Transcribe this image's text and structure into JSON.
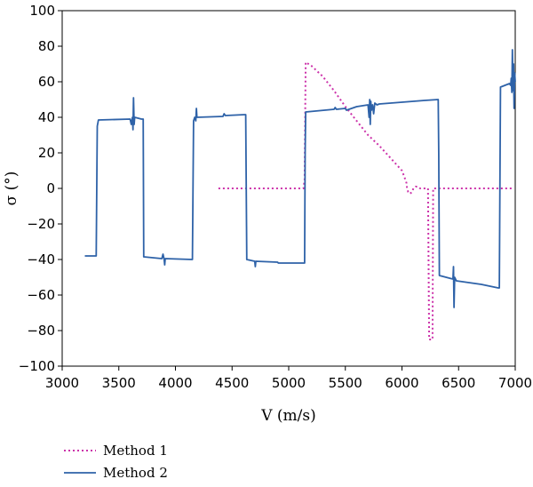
{
  "chart_data": {
    "type": "line",
    "xlabel": "V (m/s)",
    "ylabel": "σ (°)",
    "xlim": [
      3000,
      7000
    ],
    "ylim": [
      -100,
      100
    ],
    "xticks": [
      3000,
      3500,
      4000,
      4500,
      5000,
      5500,
      6000,
      6500,
      7000
    ],
    "yticks": [
      -100,
      -80,
      -60,
      -40,
      -20,
      0,
      20,
      40,
      60,
      80,
      100
    ],
    "grid": false,
    "legend_position": "bottom-left-below",
    "series": [
      {
        "name": "Method 1",
        "style": "dotted",
        "color": "#cc33aa",
        "points": [
          [
            4380,
            0
          ],
          [
            5130,
            0
          ],
          [
            5140,
            5
          ],
          [
            5150,
            71
          ],
          [
            5200,
            69
          ],
          [
            5300,
            63
          ],
          [
            5400,
            55
          ],
          [
            5500,
            46
          ],
          [
            5600,
            38
          ],
          [
            5700,
            30
          ],
          [
            5800,
            24
          ],
          [
            5900,
            17
          ],
          [
            6000,
            10
          ],
          [
            6030,
            5
          ],
          [
            6040,
            3
          ],
          [
            6045,
            0
          ],
          [
            6055,
            -2
          ],
          [
            6070,
            -3
          ],
          [
            6090,
            -2
          ],
          [
            6100,
            0
          ],
          [
            6120,
            1
          ],
          [
            6140,
            1
          ],
          [
            6160,
            0
          ],
          [
            6210,
            0
          ],
          [
            6230,
            0
          ],
          [
            6240,
            -85
          ],
          [
            6270,
            -85
          ],
          [
            6275,
            0
          ],
          [
            6980,
            0
          ]
        ]
      },
      {
        "name": "Method 2",
        "style": "solid",
        "color": "#2e62a8",
        "points": [
          [
            3200,
            -38
          ],
          [
            3300,
            -38
          ],
          [
            3310,
            35
          ],
          [
            3320,
            38.5
          ],
          [
            3600,
            39
          ],
          [
            3610,
            36
          ],
          [
            3620,
            40
          ],
          [
            3625,
            33
          ],
          [
            3630,
            51
          ],
          [
            3635,
            36
          ],
          [
            3640,
            40
          ],
          [
            3700,
            39
          ],
          [
            3715,
            39
          ],
          [
            3720,
            -38.5
          ],
          [
            3880,
            -39.5
          ],
          [
            3890,
            -37
          ],
          [
            3900,
            -40
          ],
          [
            3905,
            -43
          ],
          [
            3910,
            -39.5
          ],
          [
            4150,
            -40
          ],
          [
            4160,
            38
          ],
          [
            4170,
            40
          ],
          [
            4180,
            38
          ],
          [
            4185,
            45
          ],
          [
            4190,
            40
          ],
          [
            4420,
            40.5
          ],
          [
            4430,
            42
          ],
          [
            4440,
            41
          ],
          [
            4610,
            41.5
          ],
          [
            4620,
            41.5
          ],
          [
            4630,
            -40
          ],
          [
            4700,
            -41
          ],
          [
            4705,
            -44
          ],
          [
            4710,
            -41
          ],
          [
            4900,
            -41.5
          ],
          [
            4910,
            -42
          ],
          [
            5140,
            -42
          ],
          [
            5145,
            20
          ],
          [
            5150,
            43
          ],
          [
            5400,
            44.5
          ],
          [
            5410,
            45.5
          ],
          [
            5420,
            44.5
          ],
          [
            5500,
            45
          ],
          [
            5510,
            44
          ],
          [
            5600,
            46
          ],
          [
            5700,
            47
          ],
          [
            5710,
            40
          ],
          [
            5715,
            50
          ],
          [
            5720,
            36
          ],
          [
            5725,
            49
          ],
          [
            5730,
            44
          ],
          [
            5740,
            47
          ],
          [
            5750,
            42
          ],
          [
            5760,
            48
          ],
          [
            5780,
            47
          ],
          [
            5800,
            47.5
          ],
          [
            6000,
            48.5
          ],
          [
            6200,
            49.5
          ],
          [
            6320,
            50
          ],
          [
            6325,
            20
          ],
          [
            6330,
            -49
          ],
          [
            6450,
            -51
          ],
          [
            6455,
            -44
          ],
          [
            6460,
            -67
          ],
          [
            6465,
            -50
          ],
          [
            6480,
            -52
          ],
          [
            6700,
            -54
          ],
          [
            6850,
            -56
          ],
          [
            6860,
            -56
          ],
          [
            6870,
            57
          ],
          [
            6950,
            59
          ],
          [
            6960,
            58
          ],
          [
            6965,
            62
          ],
          [
            6970,
            54
          ],
          [
            6975,
            78
          ],
          [
            6980,
            55
          ],
          [
            6985,
            70
          ],
          [
            6990,
            45
          ],
          [
            6995,
            65
          ],
          [
            7000,
            60
          ]
        ]
      }
    ]
  }
}
